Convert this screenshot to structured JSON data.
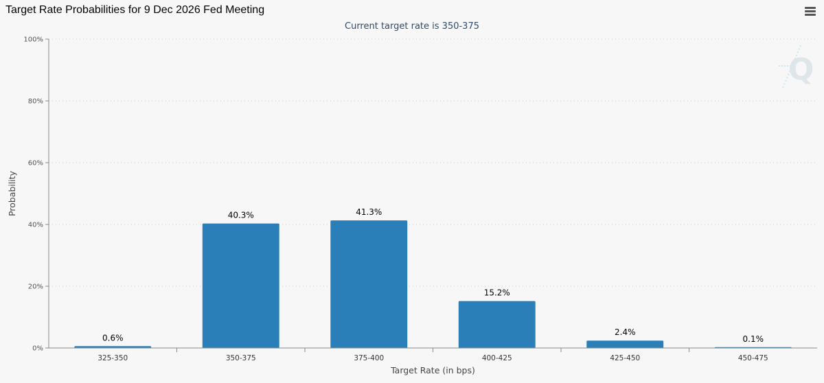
{
  "header": {
    "title": "Target Rate Probabilities for 9 Dec 2026 Fed Meeting",
    "menu_icon": "hamburger-menu-icon"
  },
  "watermark_icon": "q-logo-icon",
  "chart_data": {
    "type": "bar",
    "title": "Target Rate Probabilities for 9 Dec 2026 Fed Meeting",
    "subtitle": "Current target rate is 350-375",
    "xlabel": "Target Rate (in bps)",
    "ylabel": "Probability",
    "categories": [
      "325-350",
      "350-375",
      "375-400",
      "400-425",
      "425-450",
      "450-475"
    ],
    "values": [
      0.6,
      40.3,
      41.3,
      15.2,
      2.4,
      0.1
    ],
    "data_labels": [
      "0.6%",
      "40.3%",
      "41.3%",
      "15.2%",
      "2.4%",
      "0.1%"
    ],
    "ylim": [
      0,
      100
    ],
    "yticks": [
      0,
      20,
      40,
      60,
      80,
      100
    ],
    "ytick_labels": [
      "0%",
      "20%",
      "40%",
      "60%",
      "80%",
      "100%"
    ],
    "grid": true,
    "legend": "none",
    "bar_color": "#2a7fb8"
  }
}
